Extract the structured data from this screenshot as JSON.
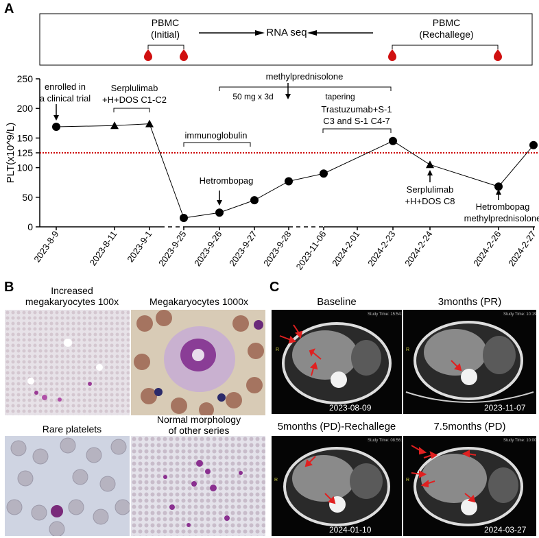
{
  "panels": {
    "a": "A",
    "b": "B",
    "c": "C"
  },
  "top_box": {
    "pbmc_initial": [
      "PBMC",
      "(Initial)"
    ],
    "rna_seq": "RNA seq",
    "pbmc_rechallenge": [
      "PBMC",
      "(Rechallege)"
    ]
  },
  "chart_data": {
    "type": "line",
    "ylabel": "PLT(x10^9/L)",
    "ylim": [
      0,
      250
    ],
    "yticks": [
      0,
      50,
      100,
      125,
      150,
      200,
      250
    ],
    "threshold": 125,
    "categories": [
      "2023-8-9",
      "2023-8-11",
      "2023-9-1",
      "2023-9-25",
      "2023-9-26",
      "2023-9-27",
      "2023-9-28",
      "2023-11-06",
      "2024-2-01",
      "2024-2-23",
      "2024-2-24",
      "2024-2-26",
      "2024-2-27"
    ],
    "points": [
      {
        "x": "2023-8-9",
        "y": 169,
        "marker": "circle"
      },
      {
        "x": "2023-8-11",
        "y": 171,
        "marker": "triangle"
      },
      {
        "x": "2023-9-1",
        "y": 174,
        "marker": "triangle"
      },
      {
        "x": "2023-9-25",
        "y": 15,
        "marker": "circle"
      },
      {
        "x": "2023-9-26",
        "y": 24,
        "marker": "circle"
      },
      {
        "x": "2023-9-27",
        "y": 45,
        "marker": "circle"
      },
      {
        "x": "2023-9-28",
        "y": 77,
        "marker": "circle"
      },
      {
        "x": "2023-11-06",
        "y": 90,
        "marker": "circle"
      },
      {
        "x": "2024-2-23",
        "y": 145,
        "marker": "circle"
      },
      {
        "x": "2024-2-24",
        "y": 105,
        "marker": "triangle"
      },
      {
        "x": "2024-2-26",
        "y": 68,
        "marker": "circle"
      },
      {
        "x": "2024-2-27",
        "y": 138,
        "marker": "circle"
      }
    ],
    "annotations": {
      "enrolled": [
        "enrolled in",
        "a clinical trial"
      ],
      "serplulimab1": [
        "Serplulimab",
        "+H+DOS C1-C2"
      ],
      "immunoglobulin": "immunoglobulin",
      "methylpred": "methylprednisolone",
      "dose": "50 mg x 3d",
      "tapering": "tapering",
      "trastuzumab": [
        "Trastuzumab+S-1",
        "C3 and S-1 C4-7"
      ],
      "hetrombopag": "Hetrombopag",
      "serplulimab2": [
        "Serplulimab",
        "+H+DOS C8"
      ],
      "hetro_methyl": [
        "Hetrombopag",
        "methylprednisolone"
      ]
    }
  },
  "micro": {
    "t1": [
      "Increased",
      "megakaryocytes 100x"
    ],
    "t2": "Megakaryocytes 1000x",
    "t3": "Rare platelets",
    "t4": [
      "Normal morphology",
      "of other series"
    ]
  },
  "ct": {
    "baseline": {
      "title": "Baseline",
      "date": "2023-08-09"
    },
    "m3": {
      "title": "3months (PR)",
      "date": "2023-11-07"
    },
    "m5": {
      "title": "5months (PD)-Rechallege",
      "date": "2024-01-10"
    },
    "m75": {
      "title": "7.5months (PD)",
      "date": "2024-03-27"
    }
  },
  "colors": {
    "threshold": "#cc0000",
    "arrow": "#e02020",
    "drop": "#d01010"
  }
}
